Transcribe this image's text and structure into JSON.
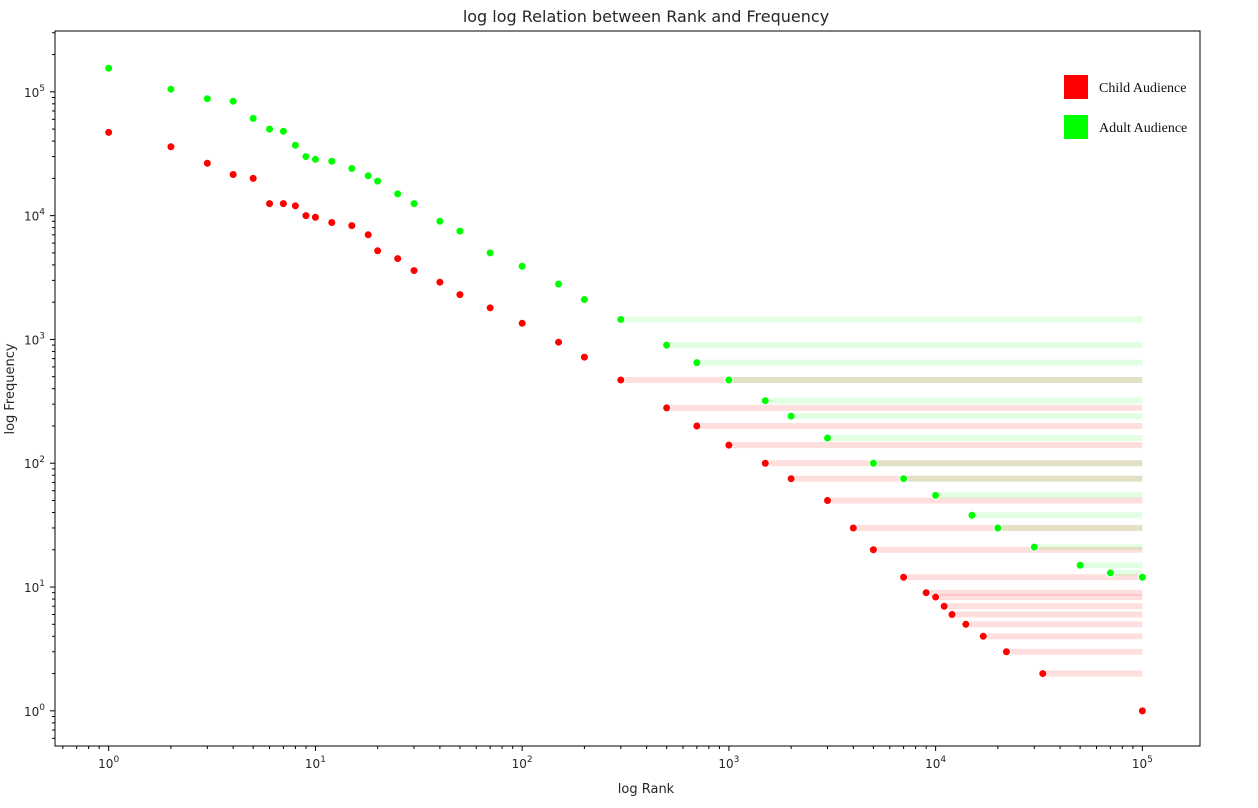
{
  "chart_data": {
    "type": "scatter",
    "title": "log log Relation between Rank and Frequency",
    "xlabel": "log Rank",
    "ylabel": "log Frequency",
    "xscale": "log",
    "yscale": "log",
    "xlim": [
      0.55,
      190000
    ],
    "ylim": [
      0.52,
      310000
    ],
    "x_ticks": [
      {
        "value": 1,
        "mantissa": "10",
        "exp": "0"
      },
      {
        "value": 10,
        "mantissa": "10",
        "exp": "1"
      },
      {
        "value": 100,
        "mantissa": "10",
        "exp": "2"
      },
      {
        "value": 1000,
        "mantissa": "10",
        "exp": "3"
      },
      {
        "value": 10000,
        "mantissa": "10",
        "exp": "4"
      },
      {
        "value": 100000,
        "mantissa": "10",
        "exp": "5"
      }
    ],
    "y_ticks": [
      {
        "value": 1,
        "mantissa": "10",
        "exp": "0"
      },
      {
        "value": 10,
        "mantissa": "10",
        "exp": "1"
      },
      {
        "value": 100,
        "mantissa": "10",
        "exp": "2"
      },
      {
        "value": 1000,
        "mantissa": "10",
        "exp": "3"
      },
      {
        "value": 10000,
        "mantissa": "10",
        "exp": "4"
      },
      {
        "value": 100000,
        "mantissa": "10",
        "exp": "5"
      }
    ],
    "grid": false,
    "legend_position": "top-right",
    "series": [
      {
        "name": "Child Audience",
        "color": "#ff0000",
        "points": [
          [
            1,
            47000
          ],
          [
            2,
            36000
          ],
          [
            3,
            26500
          ],
          [
            4,
            21500
          ],
          [
            5,
            20000
          ],
          [
            6,
            12500
          ],
          [
            7,
            12500
          ],
          [
            8,
            12000
          ],
          [
            9,
            10000
          ],
          [
            10,
            9700
          ],
          [
            12,
            8800
          ],
          [
            15,
            8300
          ],
          [
            18,
            7000
          ],
          [
            20,
            5200
          ],
          [
            25,
            4500
          ],
          [
            30,
            3600
          ],
          [
            40,
            2900
          ],
          [
            50,
            2300
          ],
          [
            70,
            1800
          ],
          [
            100,
            1350
          ],
          [
            150,
            950
          ],
          [
            200,
            720
          ],
          [
            300,
            470
          ],
          [
            500,
            280
          ],
          [
            700,
            200
          ],
          [
            1000,
            140
          ],
          [
            1500,
            100
          ],
          [
            2000,
            75
          ],
          [
            3000,
            50
          ],
          [
            4000,
            30
          ],
          [
            5000,
            20
          ],
          [
            7000,
            12
          ],
          [
            9000,
            9
          ],
          [
            10000,
            8.3
          ],
          [
            11000,
            7
          ],
          [
            12000,
            6
          ],
          [
            14000,
            5
          ],
          [
            17000,
            4
          ],
          [
            22000,
            3
          ],
          [
            33000,
            2
          ],
          [
            100000,
            1
          ]
        ]
      },
      {
        "name": "Adult Audience",
        "color": "#00ff00",
        "points": [
          [
            1,
            155000
          ],
          [
            2,
            105000
          ],
          [
            3,
            88000
          ],
          [
            4,
            84000
          ],
          [
            5,
            61000
          ],
          [
            6,
            50000
          ],
          [
            7,
            48000
          ],
          [
            8,
            37000
          ],
          [
            9,
            30000
          ],
          [
            10,
            28500
          ],
          [
            12,
            27500
          ],
          [
            15,
            24000
          ],
          [
            18,
            21000
          ],
          [
            20,
            19000
          ],
          [
            25,
            15000
          ],
          [
            30,
            12500
          ],
          [
            40,
            9000
          ],
          [
            50,
            7500
          ],
          [
            70,
            5000
          ],
          [
            100,
            3900
          ],
          [
            150,
            2800
          ],
          [
            200,
            2100
          ],
          [
            300,
            1450
          ],
          [
            500,
            900
          ],
          [
            700,
            650
          ],
          [
            1000,
            470
          ],
          [
            1500,
            320
          ],
          [
            2000,
            240
          ],
          [
            3000,
            160
          ],
          [
            5000,
            100
          ],
          [
            7000,
            75
          ],
          [
            10000,
            55
          ],
          [
            15000,
            38
          ],
          [
            20000,
            30
          ],
          [
            30000,
            21
          ],
          [
            50000,
            15
          ],
          [
            70000,
            13
          ],
          [
            100000,
            12
          ]
        ]
      }
    ]
  }
}
